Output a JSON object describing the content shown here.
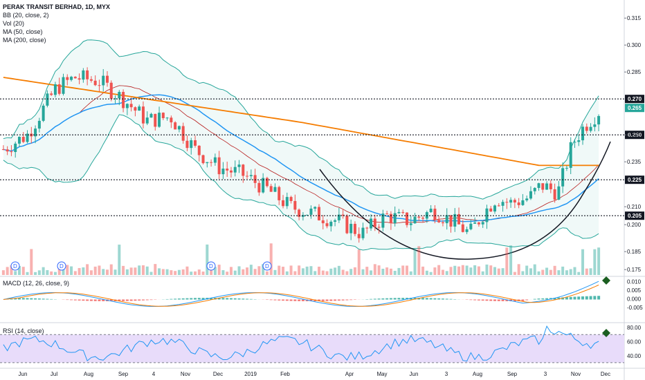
{
  "chart_data": {
    "type": "candlestick",
    "title": "PERAK TRANSIT BERHAD, 1D, MYX",
    "indicators": [
      "BB (20, close, 2)",
      "Vol (20)",
      "MA (50, close)",
      "MA (200, close)"
    ],
    "price_axis": {
      "ticks": [
        "0.315",
        "0.300",
        "0.285",
        "0.250",
        "0.235",
        "0.210",
        "0.200",
        "0.185",
        "0.175"
      ],
      "range": [
        0.172,
        0.322
      ]
    },
    "horizontal_levels": [
      {
        "value": 0.27,
        "label": "0.270"
      },
      {
        "value": 0.25,
        "label": "0.250"
      },
      {
        "value": 0.225,
        "label": "0.225"
      },
      {
        "value": 0.205,
        "label": "0.205"
      }
    ],
    "last_price": {
      "value": 0.265,
      "label": "0.265",
      "color": "#26a69a"
    },
    "x_axis_labels": [
      "Jun",
      "Jul",
      "Aug",
      "Sep",
      "4",
      "Nov",
      "Dec",
      "2019",
      "Feb",
      "Apr",
      "May",
      "Jun",
      "3",
      "Aug",
      "Sep",
      "3",
      "Nov",
      "Dec"
    ],
    "macd": {
      "label": "MACD (12, 26, close, 9)",
      "ticks": [
        "0.010",
        "0.005",
        "0.000",
        "-0.005"
      ]
    },
    "rsi": {
      "label": "RSI (14, close)",
      "ticks": [
        "80.00",
        "60.00",
        "40.00"
      ]
    },
    "colors": {
      "up": "#26a69a",
      "down": "#ef5350",
      "bb": "#26a69a",
      "ma50": "#2196f3",
      "ma200": "#f57c00",
      "rsi": "#2196f3",
      "rsi_band": "#e8dcfa"
    }
  }
}
